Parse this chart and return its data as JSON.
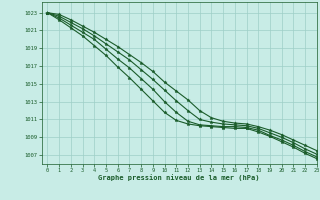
{
  "title": "Graphe pression niveau de la mer (hPa)",
  "background_color": "#c8ece6",
  "grid_color": "#9ecfc7",
  "line_color": "#1a5c2a",
  "marker_color": "#1a5c2a",
  "xlim": [
    -0.5,
    23
  ],
  "ylim": [
    1006.0,
    1024.2
  ],
  "yticks": [
    1007,
    1009,
    1011,
    1013,
    1015,
    1017,
    1019,
    1021,
    1023
  ],
  "xticks": [
    0,
    1,
    2,
    3,
    4,
    5,
    6,
    7,
    8,
    9,
    10,
    11,
    12,
    13,
    14,
    15,
    16,
    17,
    18,
    19,
    20,
    21,
    22,
    23
  ],
  "series": [
    [
      1023.0,
      1022.8,
      1022.2,
      1021.5,
      1020.8,
      1020.0,
      1019.2,
      1018.3,
      1017.4,
      1016.4,
      1015.2,
      1014.2,
      1013.2,
      1012.0,
      1011.2,
      1010.8,
      1010.6,
      1010.5,
      1010.2,
      1009.8,
      1009.3,
      1008.7,
      1008.1,
      1007.5
    ],
    [
      1023.0,
      1022.6,
      1021.9,
      1021.2,
      1020.4,
      1019.5,
      1018.6,
      1017.7,
      1016.6,
      1015.5,
      1014.3,
      1013.1,
      1012.0,
      1011.0,
      1010.7,
      1010.5,
      1010.4,
      1010.3,
      1010.0,
      1009.5,
      1009.0,
      1008.4,
      1007.7,
      1007.1
    ],
    [
      1023.0,
      1022.4,
      1021.6,
      1020.8,
      1020.0,
      1018.9,
      1017.8,
      1016.8,
      1015.6,
      1014.4,
      1013.0,
      1011.8,
      1010.8,
      1010.4,
      1010.3,
      1010.2,
      1010.2,
      1010.1,
      1009.8,
      1009.2,
      1008.7,
      1008.1,
      1007.4,
      1006.8
    ],
    [
      1023.0,
      1022.2,
      1021.3,
      1020.4,
      1019.3,
      1018.2,
      1016.9,
      1015.7,
      1014.4,
      1013.1,
      1011.8,
      1010.9,
      1010.5,
      1010.3,
      1010.2,
      1010.1,
      1010.0,
      1010.0,
      1009.6,
      1009.1,
      1008.5,
      1007.9,
      1007.2,
      1006.6
    ]
  ]
}
